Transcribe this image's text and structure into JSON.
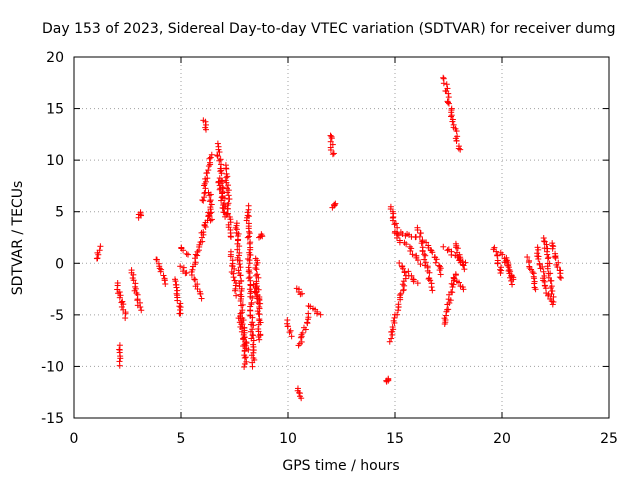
{
  "chart_data": {
    "type": "scatter",
    "title": "Day 153 of 2023, Sidereal Day-to-day VTEC variation (SDTVAR) for receiver dumg",
    "xlabel": "GPS time / hours",
    "ylabel": "SDTVAR / TECUs",
    "xlim": [
      0,
      25
    ],
    "ylim": [
      -15,
      20
    ],
    "xticks": [
      "0",
      "5",
      "10",
      "15",
      "20",
      "25"
    ],
    "yticks": [
      "-15",
      "-10",
      "-5",
      "0",
      "5",
      "10",
      "15",
      "20"
    ],
    "xtick_values": [
      0,
      5,
      10,
      15,
      20,
      25
    ],
    "ytick_values": [
      -15,
      -10,
      -5,
      0,
      5,
      10,
      15,
      20
    ],
    "grid": true,
    "marker": "+",
    "color": "#ff0000",
    "series": [
      {
        "name": "SDTVAR",
        "segments": [
          {
            "x0": 1.05,
            "y0": 0.4,
            "x1": 1.2,
            "y1": 1.6
          },
          {
            "x0": 2.0,
            "y0": -2.0,
            "x1": 2.4,
            "y1": -5.2
          },
          {
            "x0": 2.1,
            "y0": -8.0,
            "x1": 2.15,
            "y1": -9.8
          },
          {
            "x0": 2.7,
            "y0": -0.8,
            "x1": 3.1,
            "y1": -4.5
          },
          {
            "x0": 3.05,
            "y0": 4.5,
            "x1": 3.1,
            "y1": 5.0
          },
          {
            "x0": 3.9,
            "y0": 0.5,
            "x1": 4.3,
            "y1": -2.0
          },
          {
            "x0": 4.7,
            "y0": -1.5,
            "x1": 5.0,
            "y1": -5.0
          },
          {
            "x0": 5.0,
            "y0": 1.5,
            "x1": 5.3,
            "y1": 0.8
          },
          {
            "x0": 5.0,
            "y0": -0.3,
            "x1": 5.3,
            "y1": -1.0
          },
          {
            "x0": 5.5,
            "y0": -1.0,
            "x1": 6.3,
            "y1": 5.0
          },
          {
            "x0": 5.6,
            "y0": -1.5,
            "x1": 6.0,
            "y1": -3.3
          },
          {
            "x0": 6.0,
            "y0": 6.0,
            "x1": 6.4,
            "y1": 10.5
          },
          {
            "x0": 6.35,
            "y0": 7.0,
            "x1": 6.4,
            "y1": 4.0
          },
          {
            "x0": 6.1,
            "y0": 14.0,
            "x1": 6.1,
            "y1": 13.0
          },
          {
            "x0": 6.7,
            "y0": 11.5,
            "x1": 7.1,
            "y1": 4.5
          },
          {
            "x0": 6.8,
            "y0": 8.0,
            "x1": 7.0,
            "y1": 5.0
          },
          {
            "x0": 7.1,
            "y0": 9.5,
            "x1": 7.3,
            "y1": 2.5
          },
          {
            "x0": 7.3,
            "y0": 1.0,
            "x1": 7.6,
            "y1": -3.0
          },
          {
            "x0": 7.6,
            "y0": 4.0,
            "x1": 8.0,
            "y1": -10.0
          },
          {
            "x0": 7.7,
            "y0": -5.0,
            "x1": 8.1,
            "y1": -8.5
          },
          {
            "x0": 8.1,
            "y0": 5.5,
            "x1": 8.4,
            "y1": -10.0
          },
          {
            "x0": 8.4,
            "y0": -2.0,
            "x1": 8.7,
            "y1": -4.0
          },
          {
            "x0": 8.5,
            "y0": 0.5,
            "x1": 8.7,
            "y1": -7.5
          },
          {
            "x0": 8.7,
            "y0": 2.5,
            "x1": 8.8,
            "y1": 2.7
          },
          {
            "x0": 10.0,
            "y0": -5.5,
            "x1": 10.1,
            "y1": -7.0
          },
          {
            "x0": 10.4,
            "y0": -12.0,
            "x1": 10.6,
            "y1": -13.2
          },
          {
            "x0": 10.4,
            "y0": -2.5,
            "x1": 10.6,
            "y1": -3.0
          },
          {
            "x0": 10.5,
            "y0": -8.0,
            "x1": 11.0,
            "y1": -5.0
          },
          {
            "x0": 11.0,
            "y0": -4.0,
            "x1": 11.5,
            "y1": -5.0
          },
          {
            "x0": 12.0,
            "y0": 12.5,
            "x1": 12.1,
            "y1": 10.5
          },
          {
            "x0": 12.1,
            "y0": 5.5,
            "x1": 12.2,
            "y1": 5.8
          },
          {
            "x0": 14.6,
            "y0": -11.5,
            "x1": 14.7,
            "y1": -11.2
          },
          {
            "x0": 14.8,
            "y0": 5.5,
            "x1": 15.2,
            "y1": 2.0
          },
          {
            "x0": 14.8,
            "y0": -7.5,
            "x1": 15.5,
            "y1": -1.0
          },
          {
            "x0": 15.0,
            "y0": 3.0,
            "x1": 16.0,
            "y1": 2.5
          },
          {
            "x0": 15.2,
            "y0": 0.0,
            "x1": 16.0,
            "y1": -2.0
          },
          {
            "x0": 15.5,
            "y0": 2.0,
            "x1": 16.2,
            "y1": 0.0
          },
          {
            "x0": 16.1,
            "y0": 3.5,
            "x1": 16.7,
            "y1": -2.5
          },
          {
            "x0": 16.5,
            "y0": 2.0,
            "x1": 17.2,
            "y1": -1.0
          },
          {
            "x0": 17.3,
            "y0": 18.0,
            "x1": 18.0,
            "y1": 11.0
          },
          {
            "x0": 17.3,
            "y0": 1.5,
            "x1": 18.3,
            "y1": 0.0
          },
          {
            "x0": 17.3,
            "y0": -6.0,
            "x1": 17.8,
            "y1": -1.0
          },
          {
            "x0": 17.7,
            "y0": -1.5,
            "x1": 18.2,
            "y1": -2.5
          },
          {
            "x0": 17.8,
            "y0": 2.0,
            "x1": 18.2,
            "y1": -0.5
          },
          {
            "x0": 19.6,
            "y0": 1.5,
            "x1": 20.0,
            "y1": -1.0
          },
          {
            "x0": 20.0,
            "y0": 1.0,
            "x1": 20.5,
            "y1": -1.5
          },
          {
            "x0": 20.2,
            "y0": 0.5,
            "x1": 20.5,
            "y1": -2.0
          },
          {
            "x0": 21.2,
            "y0": 0.5,
            "x1": 21.6,
            "y1": -2.5
          },
          {
            "x0": 21.6,
            "y0": 1.5,
            "x1": 22.2,
            "y1": -3.5
          },
          {
            "x0": 22.0,
            "y0": 2.5,
            "x1": 22.4,
            "y1": -4.0
          },
          {
            "x0": 22.3,
            "y0": 2.0,
            "x1": 22.8,
            "y1": -1.5
          }
        ]
      }
    ]
  }
}
